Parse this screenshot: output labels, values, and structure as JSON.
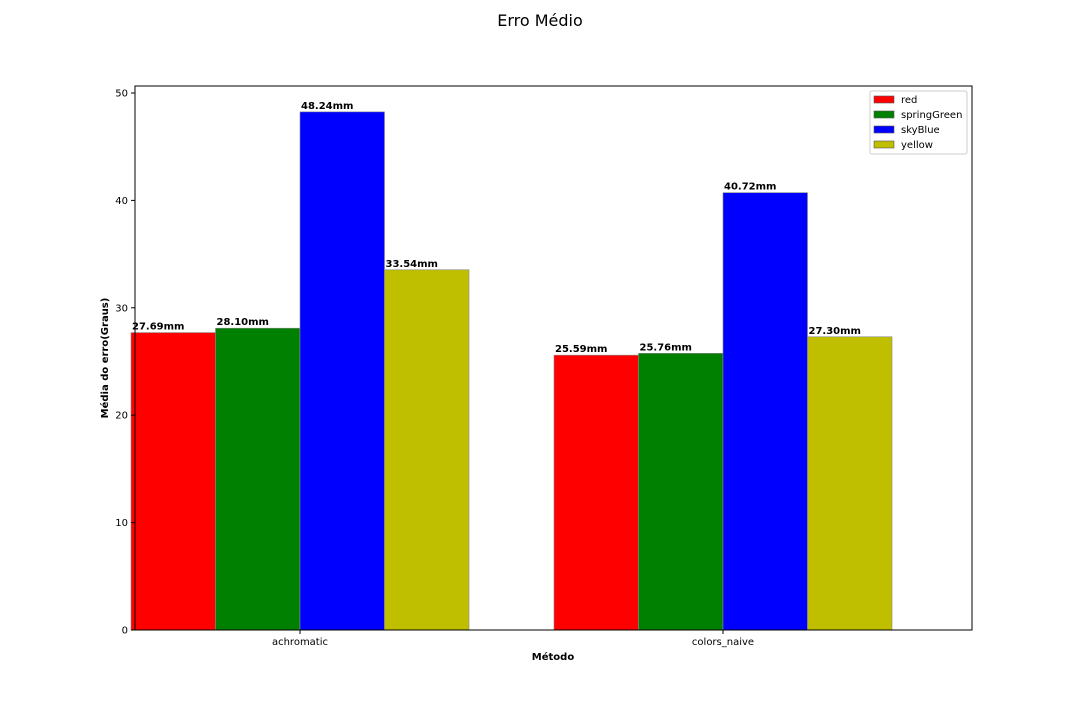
{
  "chart_data": {
    "type": "bar",
    "title": "Erro Médio",
    "xlabel": "Método",
    "ylabel": "Média do erro(Graus)",
    "categories": [
      "achromatic",
      "colors_naive"
    ],
    "series": [
      {
        "name": "red",
        "color": "#ff0000",
        "values": [
          27.69,
          25.59
        ],
        "labels": [
          "27.69mm",
          "25.59mm"
        ]
      },
      {
        "name": "springGreen",
        "color": "#008000",
        "values": [
          28.1,
          25.76
        ],
        "labels": [
          "28.10mm",
          "25.76mm"
        ]
      },
      {
        "name": "skyBlue",
        "color": "#0000ff",
        "values": [
          48.24,
          40.72
        ],
        "labels": [
          "48.24mm",
          "40.72mm"
        ]
      },
      {
        "name": "yellow",
        "color": "#bfbf00",
        "values": [
          33.54,
          27.3
        ],
        "labels": [
          "33.54mm",
          "27.30mm"
        ]
      }
    ],
    "ylim": [
      0,
      50.65
    ],
    "yticks": [
      0,
      10,
      20,
      30,
      40,
      50
    ],
    "grid": false,
    "legend_position": "top-right"
  }
}
